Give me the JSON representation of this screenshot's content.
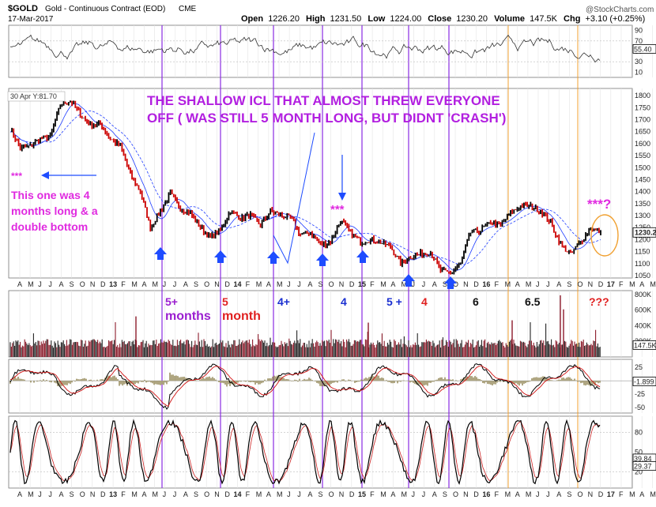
{
  "header": {
    "symbol": "$GOLD",
    "name": "Gold - Continuous Contract (EOD)",
    "exchange": "CME",
    "date": "17-Mar-2017",
    "open_label": "Open",
    "open": "1226.20",
    "high_label": "High",
    "high": "1231.50",
    "low_label": "Low",
    "low": "1224.00",
    "close_label": "Close",
    "close": "1230.20",
    "volume_label": "Volume",
    "volume": "147.5K",
    "chg_label": "Chg",
    "chg": "+3.10 (+0.25%)",
    "watermark": "@StockCharts.com"
  },
  "price_tag": "30 Apr Y:81.70",
  "annotations": {
    "title_line1": "THE SHALLOW ICL THAT ALMOST THREW EVERYONE",
    "title_line2": "OFF ( WAS STILL 5 MONTH LONG, BUT DIDNT 'CRASH')",
    "left_stars": "***",
    "left_note1": "This one was 4",
    "left_note2": "months long & a",
    "left_note3": "double bottom",
    "mid_stars": "***",
    "right_stars": "***?",
    "cycle_labels": [
      {
        "text": "5+",
        "text2": "months",
        "color": "#9b1fd0"
      },
      {
        "text": "5",
        "text2": "month",
        "color": "#e02020"
      },
      {
        "text": "4+",
        "text2": "",
        "color": "#1a2fd0"
      },
      {
        "text": "4",
        "text2": "",
        "color": "#1a2fd0"
      },
      {
        "text": "5 +",
        "text2": "",
        "color": "#1a2fd0"
      },
      {
        "text": "4",
        "text2": "",
        "color": "#e02020"
      },
      {
        "text": "6",
        "text2": "",
        "color": "#111111"
      },
      {
        "text": "6.5",
        "text2": "",
        "color": "#111111"
      },
      {
        "text": "???",
        "text2": "",
        "color": "#e02020"
      }
    ]
  },
  "x_axis_labels": [
    "A",
    "M",
    "J",
    "J",
    "A",
    "S",
    "O",
    "N",
    "D",
    "13",
    "F",
    "M",
    "A",
    "M",
    "J",
    "J",
    "A",
    "S",
    "O",
    "N",
    "D",
    "14",
    "F",
    "M",
    "A",
    "M",
    "J",
    "J",
    "A",
    "S",
    "O",
    "N",
    "D",
    "15",
    "F",
    "M",
    "A",
    "M",
    "J",
    "J",
    "A",
    "S",
    "O",
    "N",
    "D",
    "16",
    "F",
    "M",
    "A",
    "M",
    "J",
    "J",
    "A",
    "S",
    "O",
    "N",
    "D",
    "17",
    "F",
    "M",
    "A",
    "M",
    "J"
  ],
  "colors": {
    "cycle_line": "#8a2be2",
    "orange_line": "#f0a030",
    "volume_bar": "#8b1a2a",
    "price_up": "#000000",
    "price_down": "#cc0000",
    "ma_blue": "#1e3cff",
    "arrow_blue": "#1e4cff"
  },
  "chart_data": [
    {
      "type": "line",
      "panel": "RSI",
      "ylim": [
        0,
        100
      ],
      "yticks": [
        "90",
        "70",
        "50",
        "30",
        "10"
      ],
      "last_value_label": "55.40"
    },
    {
      "type": "line",
      "panel": "price",
      "ylim": [
        1040,
        1830
      ],
      "yticks": [
        "1800",
        "1750",
        "1700",
        "1650",
        "1600",
        "1550",
        "1500",
        "1450",
        "1400",
        "1350",
        "1300",
        "1250",
        "1200",
        "1150",
        "1100",
        "1050"
      ],
      "last_value_label": "1230.2",
      "x": [
        "Apr-12",
        "May-12",
        "Jun-12",
        "Jul-12",
        "Aug-12",
        "Sep-12",
        "Oct-12",
        "Nov-12",
        "Dec-12",
        "Jan-13",
        "Feb-13",
        "Mar-13",
        "Apr-13",
        "May-13",
        "Jun-13",
        "Jul-13",
        "Aug-13",
        "Sep-13",
        "Oct-13",
        "Nov-13",
        "Dec-13",
        "Jan-14",
        "Feb-14",
        "Mar-14",
        "Apr-14",
        "May-14",
        "Jun-14",
        "Jul-14",
        "Aug-14",
        "Sep-14",
        "Oct-14",
        "Nov-14",
        "Dec-14",
        "Jan-15",
        "Feb-15",
        "Mar-15",
        "Apr-15",
        "May-15",
        "Jun-15",
        "Jul-15",
        "Aug-15",
        "Sep-15",
        "Oct-15",
        "Nov-15",
        "Dec-15",
        "Jan-16",
        "Feb-16",
        "Mar-16",
        "Apr-16",
        "May-16",
        "Jun-16",
        "Jul-16",
        "Aug-16",
        "Sep-16",
        "Oct-16",
        "Nov-16",
        "Dec-16",
        "Jan-17",
        "Feb-17",
        "Mar-17"
      ],
      "series": [
        {
          "values": [
            1660,
            1580,
            1590,
            1620,
            1630,
            1760,
            1780,
            1720,
            1680,
            1680,
            1620,
            1590,
            1470,
            1400,
            1250,
            1320,
            1390,
            1330,
            1310,
            1250,
            1210,
            1240,
            1320,
            1290,
            1300,
            1260,
            1320,
            1300,
            1290,
            1220,
            1230,
            1180,
            1190,
            1280,
            1230,
            1190,
            1200,
            1190,
            1170,
            1100,
            1130,
            1140,
            1150,
            1070,
            1060,
            1100,
            1230,
            1240,
            1270,
            1260,
            1310,
            1340,
            1340,
            1320,
            1270,
            1180,
            1140,
            1190,
            1250,
            1230
          ]
        }
      ]
    },
    {
      "type": "bar",
      "panel": "volume",
      "yticks": [
        "800K",
        "600K",
        "400K",
        "200K"
      ],
      "last_value_label": "147.5K"
    },
    {
      "type": "line",
      "panel": "MACD",
      "yticks": [
        "25",
        "0",
        "-25",
        "-50"
      ],
      "last_value_label": "-1.899"
    },
    {
      "type": "line",
      "panel": "stochastic",
      "yticks": [
        "80",
        "50",
        "20"
      ],
      "last_value_labels": [
        "39.84",
        "29.37"
      ]
    }
  ]
}
